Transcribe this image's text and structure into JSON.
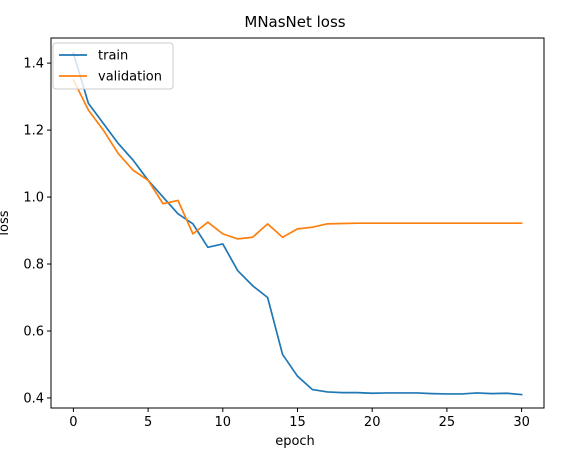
{
  "chart_data": {
    "type": "line",
    "title": "MNasNet loss",
    "xlabel": "epoch",
    "ylabel": "loss",
    "xlim": [
      -1.5,
      31.5
    ],
    "ylim": [
      0.37,
      1.475
    ],
    "xticks": [
      0,
      5,
      10,
      15,
      20,
      25,
      30
    ],
    "yticks": [
      0.4,
      0.6,
      0.8,
      1.0,
      1.2,
      1.4
    ],
    "x": [
      0,
      1,
      2,
      3,
      4,
      5,
      6,
      7,
      8,
      9,
      10,
      11,
      12,
      13,
      14,
      15,
      16,
      17,
      18,
      19,
      20,
      21,
      22,
      23,
      24,
      25,
      26,
      27,
      28,
      29,
      30
    ],
    "series": [
      {
        "name": "train",
        "color": "#1f77b4",
        "values": [
          1.43,
          1.28,
          1.22,
          1.16,
          1.11,
          1.05,
          1.0,
          0.95,
          0.92,
          0.85,
          0.86,
          0.78,
          0.735,
          0.7,
          0.53,
          0.465,
          0.425,
          0.418,
          0.416,
          0.416,
          0.414,
          0.415,
          0.415,
          0.415,
          0.413,
          0.412,
          0.412,
          0.415,
          0.413,
          0.414,
          0.41
        ]
      },
      {
        "name": "validation",
        "color": "#ff7f0e",
        "values": [
          1.35,
          1.26,
          1.2,
          1.13,
          1.08,
          1.05,
          0.98,
          0.99,
          0.89,
          0.925,
          0.89,
          0.875,
          0.88,
          0.92,
          0.88,
          0.905,
          0.91,
          0.92,
          0.921,
          0.922,
          0.922,
          0.922,
          0.922,
          0.922,
          0.922,
          0.922,
          0.922,
          0.922,
          0.922,
          0.922,
          0.922
        ]
      }
    ],
    "legend": "upper left",
    "grid": false
  }
}
